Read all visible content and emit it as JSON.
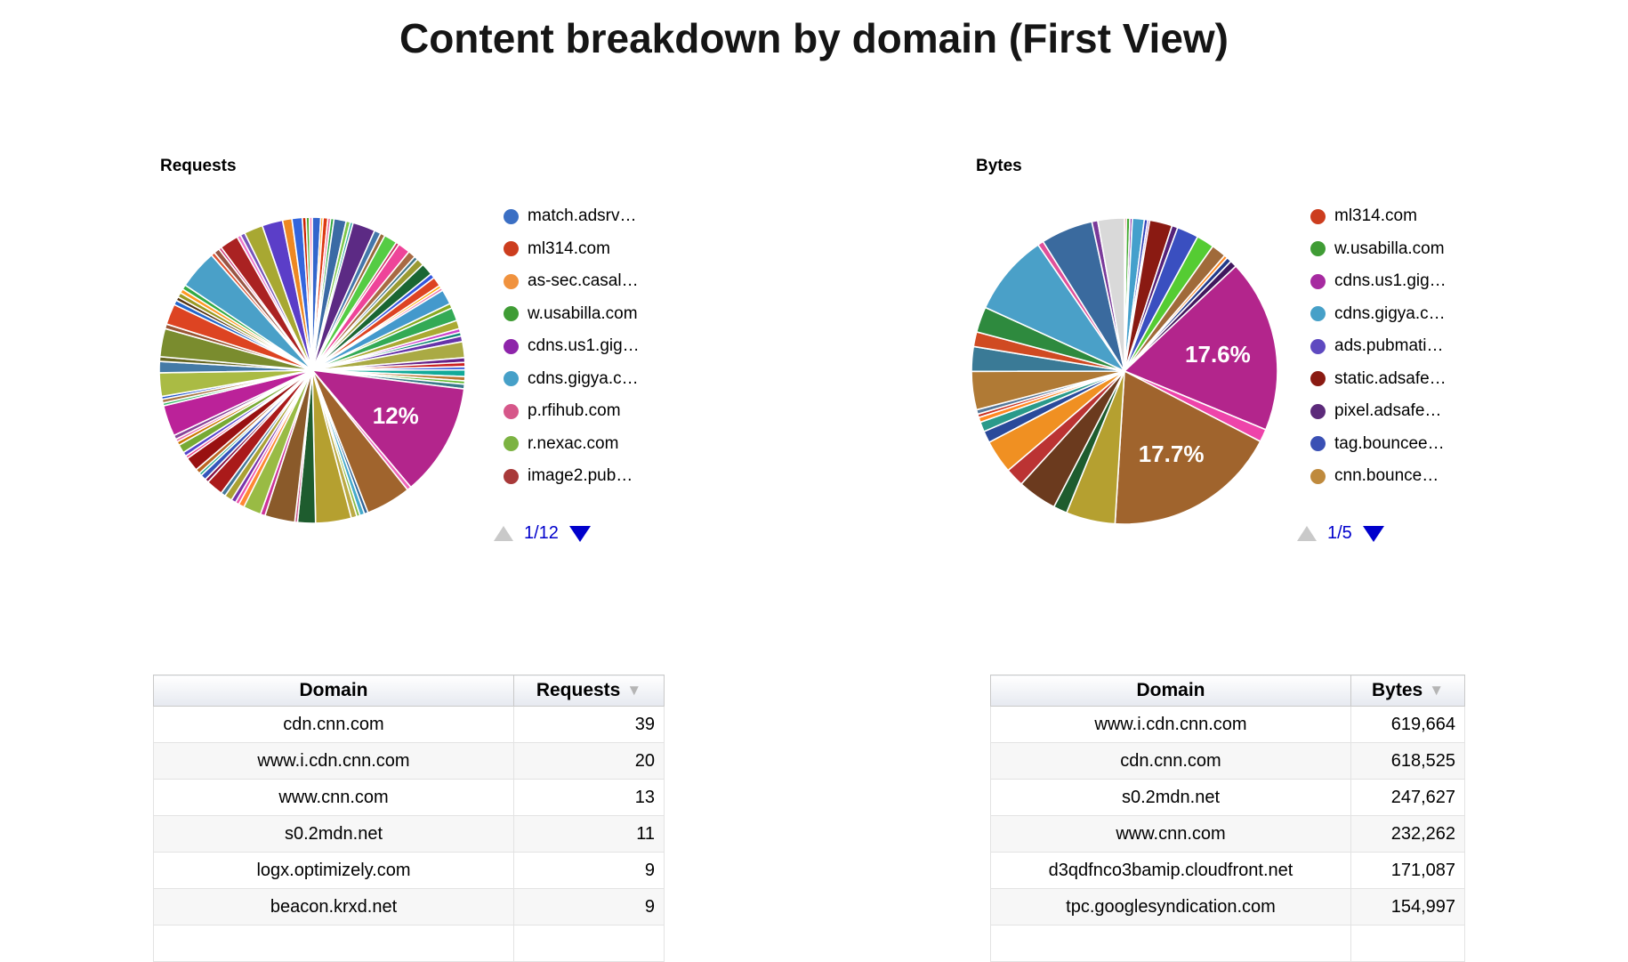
{
  "title": "Content breakdown by domain (First View)",
  "requests_section": {
    "label": "Requests",
    "pager": {
      "page": "1/12",
      "up_icon": "triangle-up",
      "down_icon": "triangle-down"
    },
    "legend": [
      {
        "label": "match.adsrv…",
        "color": "#3b6fc4"
      },
      {
        "label": "ml314.com",
        "color": "#cc3d1e"
      },
      {
        "label": "as-sec.casal…",
        "color": "#f0923e"
      },
      {
        "label": "w.usabilla.com",
        "color": "#3f9c35"
      },
      {
        "label": "cdns.us1.gig…",
        "color": "#8e24aa"
      },
      {
        "label": "cdns.gigya.c…",
        "color": "#46a0c8"
      },
      {
        "label": "p.rfihub.com",
        "color": "#d6578a"
      },
      {
        "label": "r.nexac.com",
        "color": "#7cb342"
      },
      {
        "label": "image2.pub…",
        "color": "#a83939"
      }
    ]
  },
  "bytes_section": {
    "label": "Bytes",
    "pager": {
      "page": "1/5",
      "up_icon": "triangle-up",
      "down_icon": "triangle-down"
    },
    "legend": [
      {
        "label": "ml314.com",
        "color": "#cc3d1e"
      },
      {
        "label": "w.usabilla.com",
        "color": "#3f9c35"
      },
      {
        "label": "cdns.us1.gig…",
        "color": "#a62aa0"
      },
      {
        "label": "cdns.gigya.c…",
        "color": "#46a0c8"
      },
      {
        "label": "ads.pubmati…",
        "color": "#5e49c0"
      },
      {
        "label": "static.adsafe…",
        "color": "#8a1a12"
      },
      {
        "label": "pixel.adsafe…",
        "color": "#5c2a7a"
      },
      {
        "label": "tag.bouncee…",
        "color": "#3a50b4"
      },
      {
        "label": "cnn.bounce…",
        "color": "#bf8a3d"
      }
    ]
  },
  "chart_data": [
    {
      "type": "pie",
      "title": "Requests",
      "legend_position": "right",
      "legend_page": "1/12",
      "visible_percent_labels": [
        "12%"
      ],
      "legend_entries": [
        "match.adsrv…",
        "ml314.com",
        "as-sec.casal…",
        "w.usabilla.com",
        "cdns.us1.gig…",
        "cdns.gigya.c…",
        "p.rfihub.com",
        "r.nexac.com",
        "image2.pub…"
      ],
      "slices": [
        [
          0.9,
          "#3366cc"
        ],
        [
          0.25,
          "#ff9900"
        ],
        [
          0.5,
          "#dc3912"
        ],
        [
          0.3,
          "#ee6699"
        ],
        [
          0.35,
          "#33aa44"
        ],
        [
          1.3,
          "#3b6ba5"
        ],
        [
          0.45,
          "#7ec84a"
        ],
        [
          0.3,
          "#2aa5a0"
        ],
        [
          2.4,
          "#5c2a84"
        ],
        [
          0.7,
          "#4477aa"
        ],
        [
          0.5,
          "#9a6a3a"
        ],
        [
          1.4,
          "#55cc44"
        ],
        [
          0.35,
          "#cc3366"
        ],
        [
          1.3,
          "#ee4499"
        ],
        [
          0.8,
          "#a86a44"
        ],
        [
          0.4,
          "#447788"
        ],
        [
          0.8,
          "#9a9a33"
        ],
        [
          1.3,
          "#1a6633"
        ],
        [
          0.5,
          "#3355dd"
        ],
        [
          1.0,
          "#dd4422"
        ],
        [
          0.3,
          "#ffaa00"
        ],
        [
          0.3,
          "#ee77aa"
        ],
        [
          1.6,
          "#4499cc"
        ],
        [
          0.5,
          "#88aa22"
        ],
        [
          1.4,
          "#33aa55"
        ],
        [
          0.9,
          "#aaaa33"
        ],
        [
          0.4,
          "#cc44cc"
        ],
        [
          0.4,
          "#118877"
        ],
        [
          0.6,
          "#6633aa"
        ],
        [
          1.7,
          "#aaaa44"
        ],
        [
          0.5,
          "#662288"
        ],
        [
          0.45,
          "#cc2222"
        ],
        [
          0.35,
          "#4466dd"
        ],
        [
          0.7,
          "#11aa99"
        ],
        [
          0.45,
          "#bb7733"
        ],
        [
          0.35,
          "#66bb33"
        ],
        [
          0.5,
          "#3a7a8a"
        ],
        [
          12,
          "#b3258c",
          "12%"
        ],
        [
          0.45,
          "#ee66bb"
        ],
        [
          4.8,
          "#a0642d"
        ],
        [
          0.4,
          "#336699"
        ],
        [
          0.5,
          "#44aacc"
        ],
        [
          0.35,
          "#88bb44"
        ],
        [
          0.6,
          "#bbaa44"
        ],
        [
          3.8,
          "#b5a030"
        ],
        [
          1.9,
          "#1e5c2e"
        ],
        [
          0.3,
          "#cc5588"
        ],
        [
          3.2,
          "#8a5a2a"
        ],
        [
          0.5,
          "#cc3399"
        ],
        [
          1.9,
          "#99bb44"
        ],
        [
          0.6,
          "#ff8833"
        ],
        [
          0.4,
          "#ee55aa"
        ],
        [
          0.5,
          "#7733aa"
        ],
        [
          0.8,
          "#aaa133"
        ],
        [
          0.5,
          "#447799"
        ],
        [
          1.8,
          "#aa1a1a"
        ],
        [
          0.4,
          "#881144"
        ],
        [
          0.6,
          "#3355bb"
        ],
        [
          0.3,
          "#22aa88"
        ],
        [
          0.5,
          "#bb6622"
        ],
        [
          1.5,
          "#991111"
        ],
        [
          0.3,
          "#ee4488"
        ],
        [
          0.45,
          "#5544cc"
        ],
        [
          0.9,
          "#77aa33"
        ],
        [
          0.4,
          "#cc7700"
        ],
        [
          0.3,
          "#ee66aa"
        ],
        [
          0.45,
          "#884499"
        ],
        [
          3.3,
          "#bb2299"
        ],
        [
          0.3,
          "#33bb66"
        ],
        [
          0.4,
          "#aa7744"
        ],
        [
          0.3,
          "#2255cc"
        ],
        [
          2.5,
          "#aabb44"
        ],
        [
          1.2,
          "#447aa6"
        ],
        [
          0.5,
          "#666622"
        ],
        [
          3.0,
          "#7a8c2e"
        ],
        [
          0.5,
          "#995533"
        ],
        [
          2.2,
          "#dd4422"
        ],
        [
          0.5,
          "#2266cc"
        ],
        [
          0.4,
          "#553311"
        ],
        [
          0.5,
          "#999922"
        ],
        [
          0.45,
          "#ff9922"
        ],
        [
          0.5,
          "#33aa44"
        ],
        [
          4.2,
          "#4aa0c8"
        ],
        [
          0.4,
          "#dd5533"
        ],
        [
          0.6,
          "#995544"
        ],
        [
          0.3,
          "#cc3377"
        ],
        [
          2.0,
          "#aa2222"
        ],
        [
          0.4,
          "#ee77cc"
        ],
        [
          0.5,
          "#7755bb"
        ],
        [
          2.0,
          "#a8a832"
        ],
        [
          2.2,
          "#5b3ec8"
        ],
        [
          1.0,
          "#ee8822"
        ],
        [
          1.1,
          "#3366dd"
        ],
        [
          0.4,
          "#cc2200"
        ],
        [
          0.35,
          "#55aa33"
        ],
        [
          0.3,
          "#ff88bb"
        ]
      ]
    },
    {
      "type": "pie",
      "title": "Bytes",
      "legend_position": "right",
      "legend_page": "1/5",
      "visible_percent_labels": [
        "17.6%",
        "17.7%"
      ],
      "legend_entries": [
        "ml314.com",
        "w.usabilla.com",
        "cdns.us1.gig…",
        "cdns.gigya.c…",
        "ads.pubmati…",
        "static.adsafe…",
        "pixel.adsafe…",
        "tag.bouncee…",
        "cnn.bounce…"
      ],
      "slices": [
        [
          0.2,
          "#cc2222"
        ],
        [
          0.35,
          "#44aa33"
        ],
        [
          0.25,
          "#8833aa"
        ],
        [
          1.2,
          "#44a0cc"
        ],
        [
          0.35,
          "#3344bb"
        ],
        [
          0.2,
          "#8833aa"
        ],
        [
          2.3,
          "#8a1a12"
        ],
        [
          0.6,
          "#55227a"
        ],
        [
          2.2,
          "#3a4fc0"
        ],
        [
          1.8,
          "#55cc33"
        ],
        [
          1.5,
          "#a06a3a"
        ],
        [
          0.35,
          "#ff8822"
        ],
        [
          0.5,
          "#223a8a"
        ],
        [
          0.7,
          "#41185e"
        ],
        [
          17.6,
          "#b3258c",
          "17.6%"
        ],
        [
          1.3,
          "#ee44aa"
        ],
        [
          17.7,
          "#a0642d",
          "17.7%"
        ],
        [
          5.0,
          "#b5a030"
        ],
        [
          1.4,
          "#1e5c2e"
        ],
        [
          4.0,
          "#6b3a1e"
        ],
        [
          1.9,
          "#bb3333"
        ],
        [
          3.4,
          "#f09022"
        ],
        [
          1.2,
          "#2a4a9a"
        ],
        [
          1.0,
          "#2a9a8a"
        ],
        [
          0.5,
          "#ff8822"
        ],
        [
          0.35,
          "#cc3322"
        ],
        [
          0.45,
          "#557799"
        ],
        [
          3.9,
          "#b07a35"
        ],
        [
          2.5,
          "#3a7a96"
        ],
        [
          1.5,
          "#d04a22"
        ],
        [
          2.6,
          "#2e8a3e"
        ],
        [
          8.3,
          "#4aa0c8"
        ],
        [
          0.6,
          "#e0509a"
        ],
        [
          5.3,
          "#3a6a9e"
        ],
        [
          0.6,
          "#7a3a9a"
        ],
        [
          2.7,
          "#d9d9d9"
        ]
      ]
    },
    {
      "type": "table",
      "title": "Requests by domain",
      "headers": [
        "Domain",
        "Requests"
      ],
      "rows": [
        [
          "cdn.cnn.com",
          39
        ],
        [
          "www.i.cdn.cnn.com",
          20
        ],
        [
          "www.cnn.com",
          13
        ],
        [
          "s0.2mdn.net",
          11
        ],
        [
          "logx.optimizely.com",
          9
        ],
        [
          "beacon.krxd.net",
          9
        ]
      ]
    },
    {
      "type": "table",
      "title": "Bytes by domain",
      "headers": [
        "Domain",
        "Bytes"
      ],
      "rows": [
        [
          "www.i.cdn.cnn.com",
          619664
        ],
        [
          "cdn.cnn.com",
          618525
        ],
        [
          "s0.2mdn.net",
          247627
        ],
        [
          "www.cnn.com",
          232262
        ],
        [
          "d3qdfnco3bamip.cloudfront.net",
          171087
        ],
        [
          "tpc.googlesyndication.com",
          154997
        ]
      ]
    }
  ],
  "requests_table": {
    "headers": [
      "Domain",
      "Requests"
    ],
    "sort_icon": "▼",
    "rows": [
      [
        "cdn.cnn.com",
        "39"
      ],
      [
        "www.i.cdn.cnn.com",
        "20"
      ],
      [
        "www.cnn.com",
        "13"
      ],
      [
        "s0.2mdn.net",
        "11"
      ],
      [
        "logx.optimizely.com",
        "9"
      ],
      [
        "beacon.krxd.net",
        "9"
      ]
    ]
  },
  "bytes_table": {
    "headers": [
      "Domain",
      "Bytes"
    ],
    "sort_icon": "▼",
    "rows": [
      [
        "www.i.cdn.cnn.com",
        "619,664"
      ],
      [
        "cdn.cnn.com",
        "618,525"
      ],
      [
        "s0.2mdn.net",
        "247,627"
      ],
      [
        "www.cnn.com",
        "232,262"
      ],
      [
        "d3qdfnco3bamip.cloudfront.net",
        "171,087"
      ],
      [
        "tpc.googlesyndication.com",
        "154,997"
      ]
    ]
  }
}
